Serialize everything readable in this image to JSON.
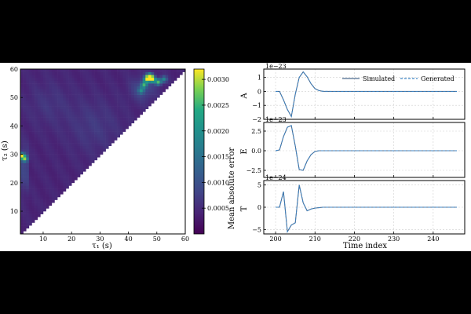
{
  "chart_data": [
    {
      "type": "heatmap",
      "xlabel": "τ₁ (s)",
      "ylabel": "τ₂ (s)",
      "xlim": [
        2,
        60
      ],
      "ylim": [
        2,
        60
      ],
      "x_ticks": [
        "10",
        "20",
        "30",
        "40",
        "50",
        "60"
      ],
      "y_ticks": [
        "10",
        "20",
        "30",
        "40",
        "50",
        "60"
      ],
      "colorbar_label": "Mean absolute error",
      "colorbar_range": [
        0.0,
        0.0032
      ],
      "colorbar_ticks": [
        "0.0005",
        "0.0010",
        "0.0015",
        "0.0020",
        "0.0025",
        "0.0030"
      ],
      "colormap": "viridis",
      "grid": false,
      "mask": "upper triangle only (τ₂ > τ₁)",
      "hotspots": [
        {
          "x": 2.5,
          "y": 29.5,
          "value": 0.0026
        },
        {
          "x": 3.5,
          "y": 28.5,
          "value": 0.0022
        },
        {
          "x": 47.5,
          "y": 57.5,
          "value": 0.0031
        },
        {
          "x": 48.5,
          "y": 56.5,
          "value": 0.003
        },
        {
          "x": 46.5,
          "y": 56.5,
          "value": 0.0027
        },
        {
          "x": 50.5,
          "y": 55.5,
          "value": 0.0025
        },
        {
          "x": 45.5,
          "y": 54.5,
          "value": 0.0021
        },
        {
          "x": 52.5,
          "y": 56.5,
          "value": 0.0018
        },
        {
          "x": 44.5,
          "y": 52.5,
          "value": 0.0016
        }
      ]
    },
    {
      "type": "line",
      "xlabel": "Time index",
      "xlim": [
        197,
        248
      ],
      "x_ticks": [
        "200",
        "210",
        "220",
        "230",
        "240"
      ],
      "grid": true,
      "legend": {
        "placement": "top-right",
        "entries": [
          "Simulated",
          "Generated"
        ]
      },
      "colors": {
        "simulated": "#4a6a8e",
        "generated": "#3b83c4"
      },
      "panels": [
        {
          "ylabel": "A",
          "exponent": "1e−23",
          "ylim": [
            -2.0,
            1.6
          ],
          "y_ticks": [
            "−2",
            "−1",
            "0",
            "1"
          ],
          "x": [
            200,
            201,
            202,
            203,
            204,
            205,
            206,
            207,
            208,
            209,
            210,
            211,
            212,
            214,
            218,
            225,
            235,
            246
          ],
          "series": [
            {
              "name": "Simulated",
              "values": [
                0,
                0,
                -0.6,
                -1.3,
                -1.8,
                -0.2,
                1.0,
                1.4,
                1.05,
                0.55,
                0.2,
                0.06,
                0.01,
                0,
                0,
                0,
                0,
                0
              ]
            },
            {
              "name": "Generated",
              "values": [
                0,
                0,
                -0.6,
                -1.3,
                -1.8,
                -0.2,
                1.0,
                1.4,
                1.05,
                0.55,
                0.2,
                0.06,
                0.01,
                0,
                0,
                0,
                0,
                0
              ]
            }
          ]
        },
        {
          "ylabel": "E",
          "exponent": "1e−23",
          "ylim": [
            -3.4,
            3.6
          ],
          "y_ticks": [
            "−2.5",
            "0.0",
            "2.5"
          ],
          "x": [
            200,
            201,
            202,
            203,
            204,
            205,
            206,
            207,
            208,
            209,
            210,
            211,
            212,
            214,
            218,
            225,
            235,
            246
          ],
          "series": [
            {
              "name": "Simulated",
              "values": [
                0,
                0.1,
                1.8,
                3.0,
                3.2,
                0.6,
                -2.4,
                -2.5,
                -1.3,
                -0.5,
                -0.1,
                0,
                0,
                0,
                0,
                0,
                0,
                0
              ]
            },
            {
              "name": "Generated",
              "values": [
                0,
                0.1,
                1.8,
                3.0,
                3.2,
                0.6,
                -2.4,
                -2.5,
                -1.3,
                -0.5,
                -0.1,
                0,
                0,
                0,
                0,
                0,
                0,
                0
              ]
            }
          ]
        },
        {
          "ylabel": "T",
          "exponent": "1e−24",
          "ylim": [
            -6,
            6
          ],
          "y_ticks": [
            "−5",
            "0",
            "5"
          ],
          "x": [
            200,
            201,
            202,
            203,
            204,
            205,
            206,
            207,
            208,
            209,
            210,
            211,
            212,
            214,
            218,
            225,
            235,
            246
          ],
          "series": [
            {
              "name": "Simulated",
              "values": [
                0,
                0,
                3.5,
                -5.5,
                -4.0,
                -3.5,
                5.0,
                1.0,
                -0.8,
                -0.4,
                -0.2,
                -0.1,
                0,
                0,
                0,
                0,
                0,
                0
              ]
            },
            {
              "name": "Generated",
              "values": [
                0,
                0,
                3.5,
                -5.5,
                -4.0,
                -3.5,
                5.0,
                1.0,
                -0.8,
                -0.4,
                -0.2,
                -0.1,
                0,
                0,
                0,
                0,
                0,
                0
              ]
            }
          ]
        }
      ]
    }
  ]
}
